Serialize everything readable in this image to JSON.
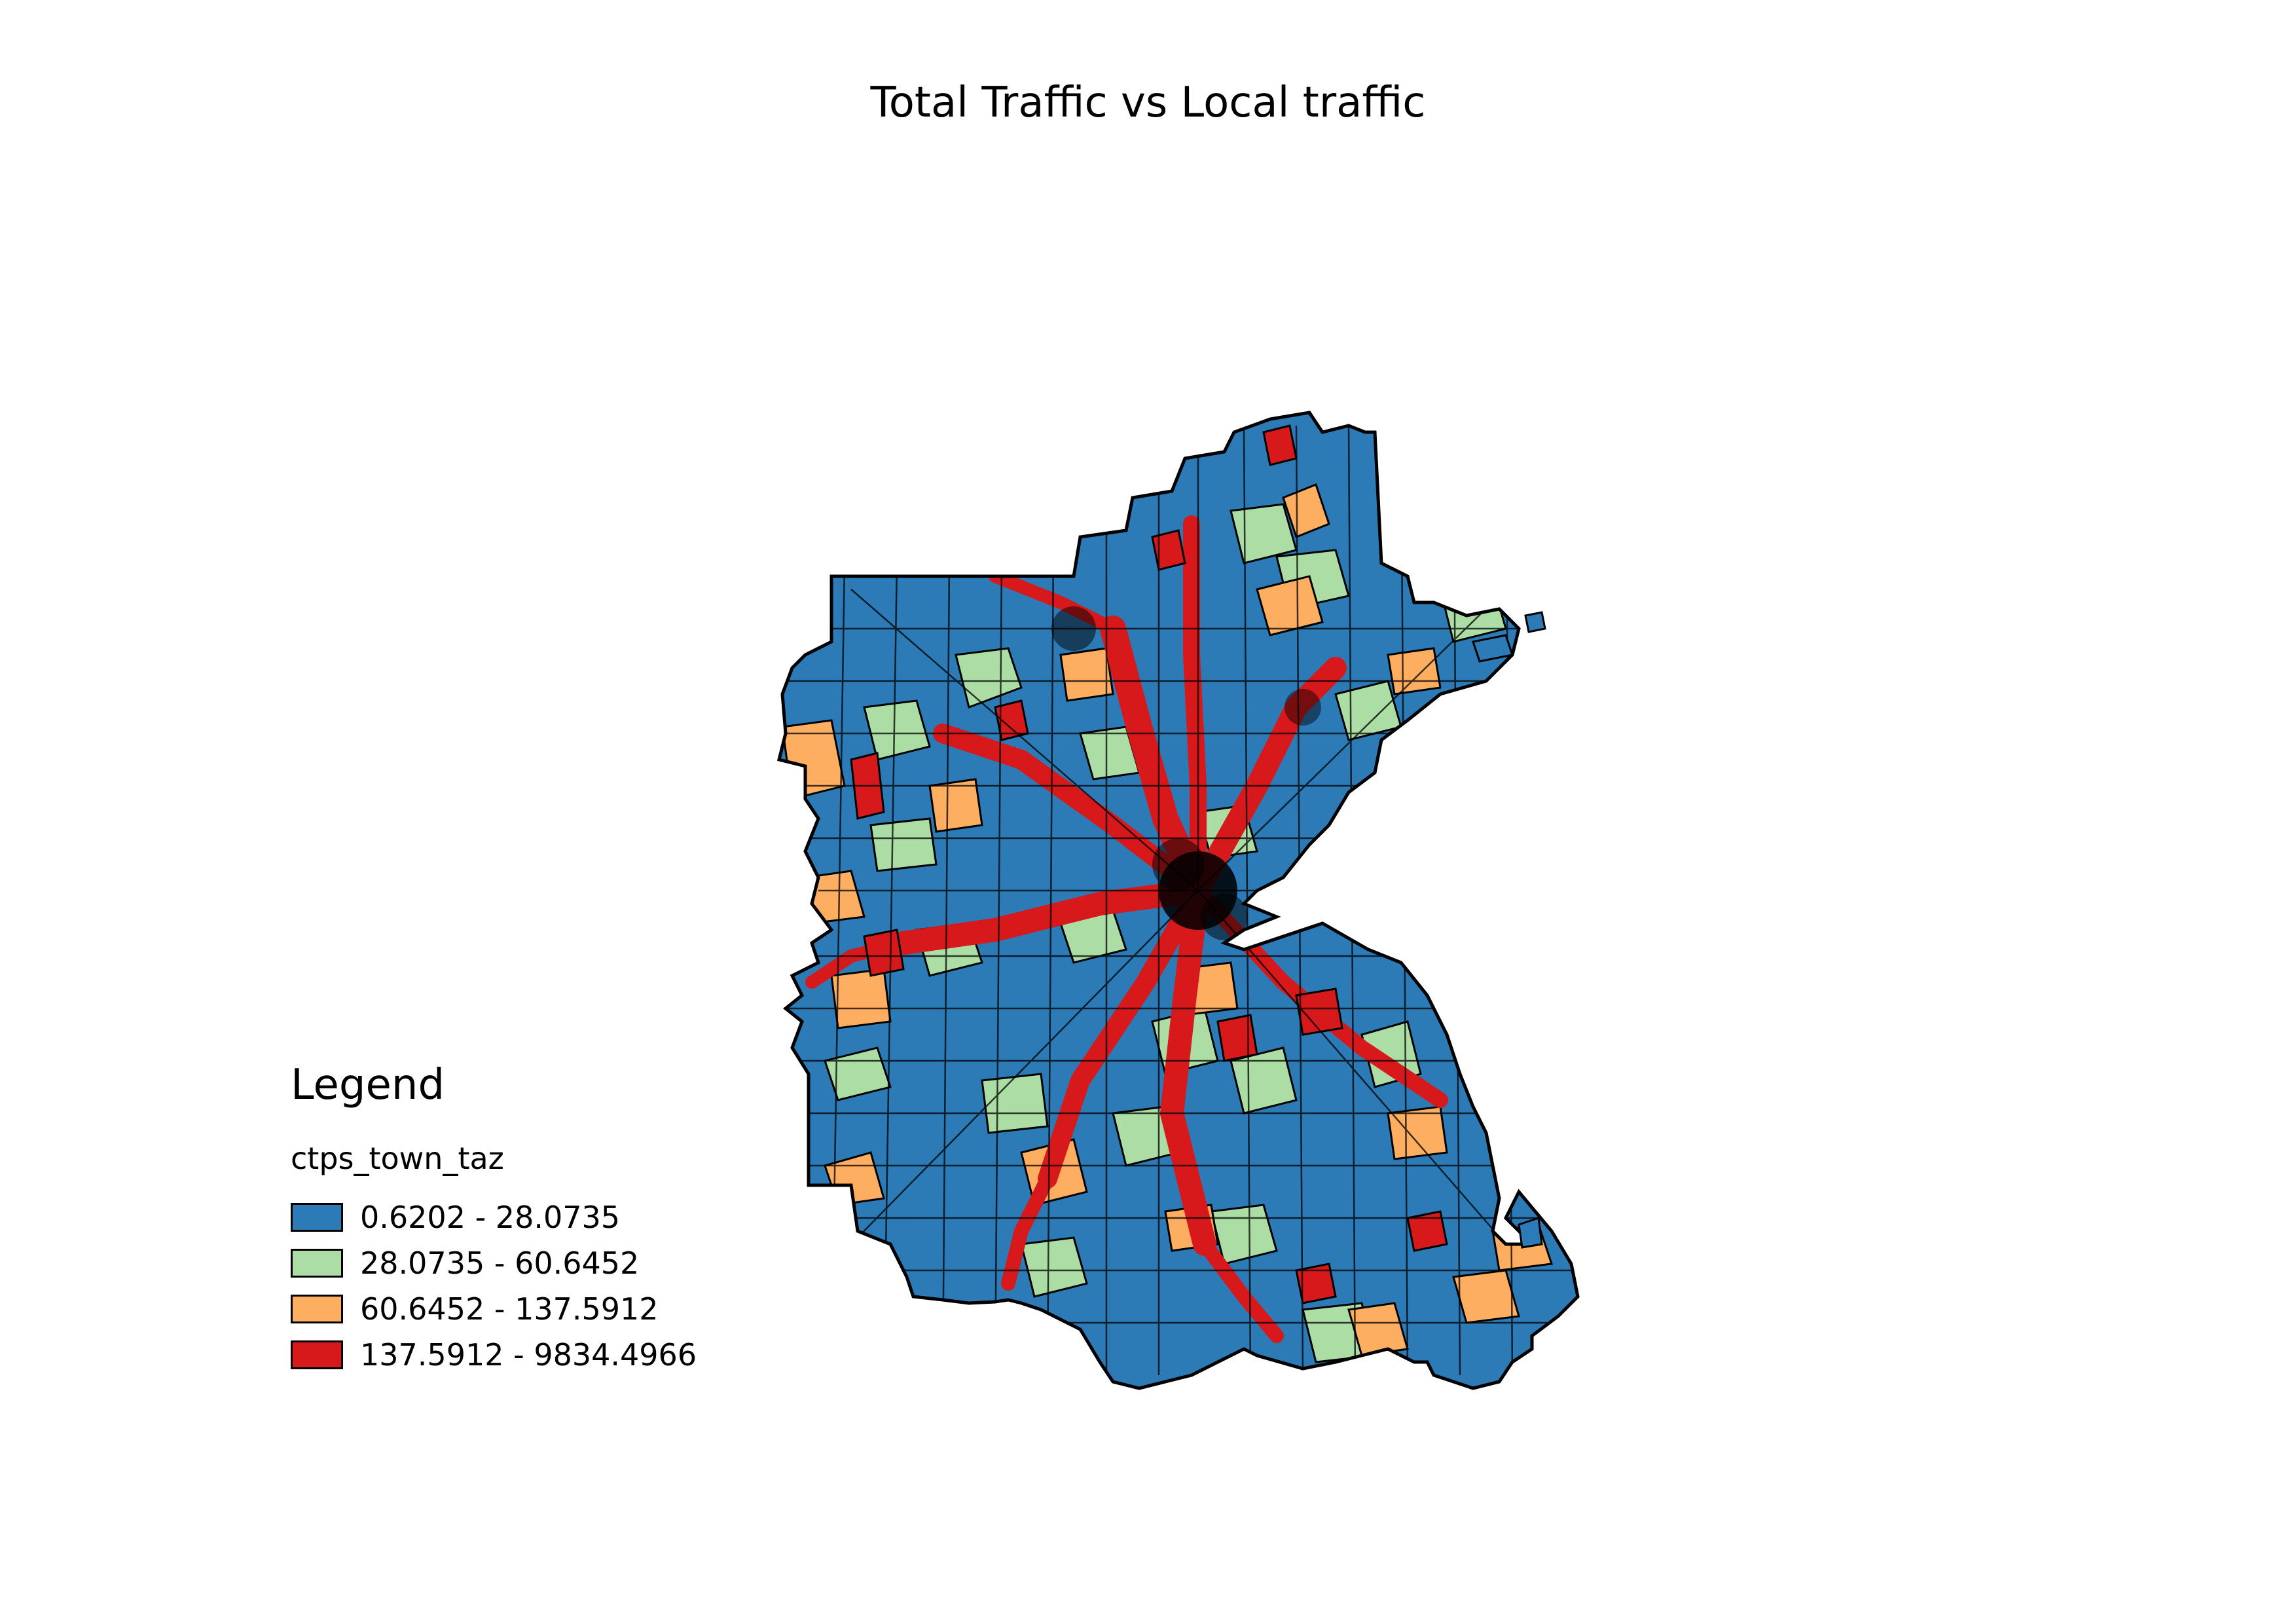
{
  "title": "Total Traffic vs Local traffic",
  "legend": {
    "heading": "Legend",
    "layer": "ctps_town_taz",
    "classes": [
      {
        "label": "0.6202 - 28.0735",
        "color": "#2c7bb6"
      },
      {
        "label": "28.0735 - 60.6452",
        "color": "#abdda4"
      },
      {
        "label": "60.6452 - 137.5912",
        "color": "#fdae61"
      },
      {
        "label": "137.5912 - 9834.4966",
        "color": "#d7191c"
      }
    ]
  },
  "map": {
    "type": "choropleth",
    "features": [
      "Boston-region traffic analysis zones colored by class; high-class corridors radiating from the urban core"
    ]
  }
}
